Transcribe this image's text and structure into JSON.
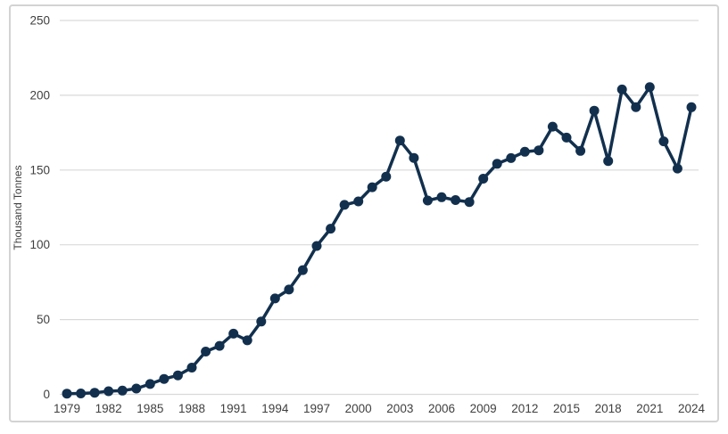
{
  "chart_data": {
    "type": "line",
    "title": "",
    "xlabel": "",
    "ylabel": "Thousand Tonnes",
    "legend": "none",
    "grid": true,
    "marker": "circle",
    "ylim": [
      0,
      250
    ],
    "y_ticks": [
      0,
      50,
      100,
      150,
      200,
      250
    ],
    "x_ticks": [
      1979,
      1982,
      1985,
      1988,
      1991,
      1994,
      1997,
      2000,
      2003,
      2006,
      2009,
      2012,
      2015,
      2018,
      2021,
      2024
    ],
    "x": [
      1979,
      1980,
      1981,
      1982,
      1983,
      1984,
      1985,
      1986,
      1987,
      1988,
      1989,
      1990,
      1991,
      1992,
      1993,
      1994,
      1995,
      1996,
      1997,
      1998,
      1999,
      2000,
      2001,
      2002,
      2003,
      2004,
      2005,
      2006,
      2007,
      2008,
      2009,
      2010,
      2011,
      2012,
      2013,
      2014,
      2015,
      2016,
      2017,
      2018,
      2019,
      2020,
      2021,
      2022,
      2023,
      2024
    ],
    "values": [
      0.5,
      0.6,
      1.1,
      2.1,
      2.5,
      3.9,
      6.9,
      10.3,
      12.7,
      17.9,
      28.6,
      32.4,
      40.6,
      36.1,
      48.7,
      64.1,
      70.1,
      83.1,
      99.2,
      110.8,
      126.7,
      129.0,
      138.5,
      145.6,
      169.7,
      158.1,
      129.6,
      131.8,
      129.9,
      128.6,
      144.2,
      154.2,
      158.0,
      162.2,
      163.2,
      179.0,
      171.7,
      162.8,
      189.7,
      156.0,
      203.9,
      192.1,
      205.4,
      169.2,
      151.0,
      192.0
    ],
    "colors": {
      "line": "#12304e",
      "marker": "#12304e",
      "gridline": "#d9d9d9",
      "border": "#d3d3d3",
      "tick_label": "#3f3f3f",
      "background": "#ffffff"
    }
  }
}
